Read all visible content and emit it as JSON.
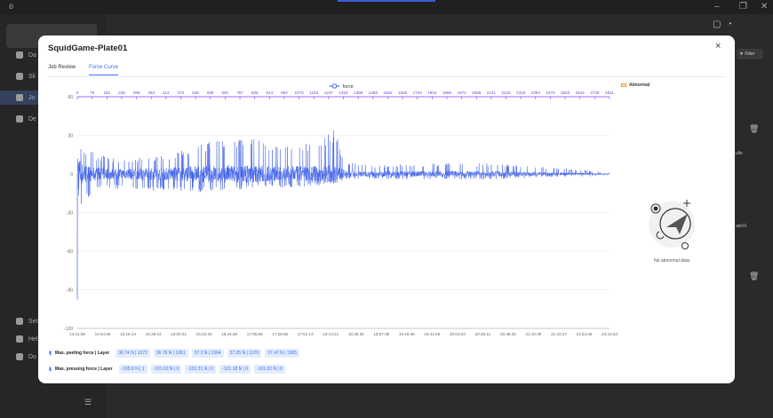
{
  "background": {
    "sidebar_items": [
      {
        "label": "Da",
        "top": 58
      },
      {
        "label": "Sli",
        "top": 82
      },
      {
        "label": "Jo",
        "top": 106
      },
      {
        "label": "De",
        "top": 130
      }
    ],
    "sidebar_bottom": [
      {
        "label": "Set",
        "top": 358
      },
      {
        "label": "Hel",
        "top": 378
      },
      {
        "label": "Do",
        "top": 398
      }
    ],
    "filter_label": "Filter",
    "right_snippets": [
      "ults",
      "ate01"
    ]
  },
  "modal": {
    "title": "SquidGame-Plate01",
    "close_glyph": "×",
    "tabs": [
      "Job Review",
      "Force Curve"
    ],
    "active_tab": 1
  },
  "abnormal_legend": "Abnormal",
  "empty_text": "No abnormal data",
  "stats": {
    "peeling_label": "Max. peeling force | Layer",
    "peeling_values": [
      "36.74 N | 1372",
      "36.76 N | 1361",
      "37.2 N | 1364",
      "37.25 N | 1370",
      "37.47 N | 1365"
    ],
    "pressing_label": "Max. pressing force | Layer",
    "pressing_values": [
      "-105.9 N | 1",
      "-101.62 N | 0",
      "-101.31 N | 0",
      "-101.18 N | 0",
      "-101.02 N | 0"
    ]
  },
  "colors": {
    "series": "#3b5ee8",
    "top_axis": "#7b3fe4",
    "accent": "#3b6ef0"
  },
  "chart_data": {
    "type": "line",
    "legend": "force",
    "legend_position": "top-center",
    "grid": true,
    "ylim": [
      -120,
      60
    ],
    "yticks": [
      60,
      30,
      0,
      -30,
      -60,
      -90,
      -120
    ],
    "top_axis_ticks": [
      "0",
      "78",
      "161",
      "238",
      "298",
      "353",
      "412",
      "472",
      "536",
      "608",
      "681",
      "757",
      "835",
      "914",
      "992",
      "1073",
      "1153",
      "1237",
      "1318",
      "1388",
      "1469",
      "1552",
      "1636",
      "1720",
      "1804",
      "1888",
      "1972",
      "2056",
      "2141",
      "2225",
      "2310",
      "2394",
      "2479",
      "2563",
      "2644",
      "2725",
      "2811"
    ],
    "bottom_axis_ticks": [
      "14:31:58",
      "14:54:06",
      "15:16:14",
      "15:38:23",
      "16:00:31",
      "16:22:40",
      "16:44:48",
      "17:06:56",
      "17:29:05",
      "17:51:13",
      "18:13:21",
      "18:35:30",
      "18:57:38",
      "19:19:48",
      "19:41:55",
      "20:04:03",
      "20:26:11",
      "20:48:20",
      "21:10:29",
      "21:32:37",
      "21:54:45",
      "22:16:53"
    ],
    "envelope": {
      "x": [
        0,
        5,
        10,
        20,
        40,
        60,
        80,
        100,
        150,
        200,
        300,
        400,
        500,
        600,
        700,
        800,
        900,
        1000,
        1100,
        1200,
        1300,
        1360,
        1370,
        1390,
        1420,
        1470,
        1600,
        1800,
        2000,
        2200,
        2400,
        2600,
        2700,
        2811
      ],
      "max": [
        30,
        33,
        25,
        22,
        20,
        18,
        17,
        15,
        14,
        12,
        12,
        14,
        16,
        20,
        25,
        27,
        28,
        26,
        25,
        25,
        28,
        35,
        33,
        20,
        10,
        8,
        7,
        8,
        9,
        8,
        6,
        4,
        3,
        1
      ],
      "min": [
        -100,
        -105,
        -60,
        -30,
        -22,
        -18,
        -16,
        -14,
        -12,
        -12,
        -12,
        -13,
        -13,
        -14,
        -14,
        -13,
        -12,
        -11,
        -11,
        -10,
        -9,
        -8,
        -8,
        -6,
        -4,
        -4,
        -4,
        -4,
        -4,
        -4,
        -3,
        -2,
        -2,
        -1
      ]
    }
  }
}
